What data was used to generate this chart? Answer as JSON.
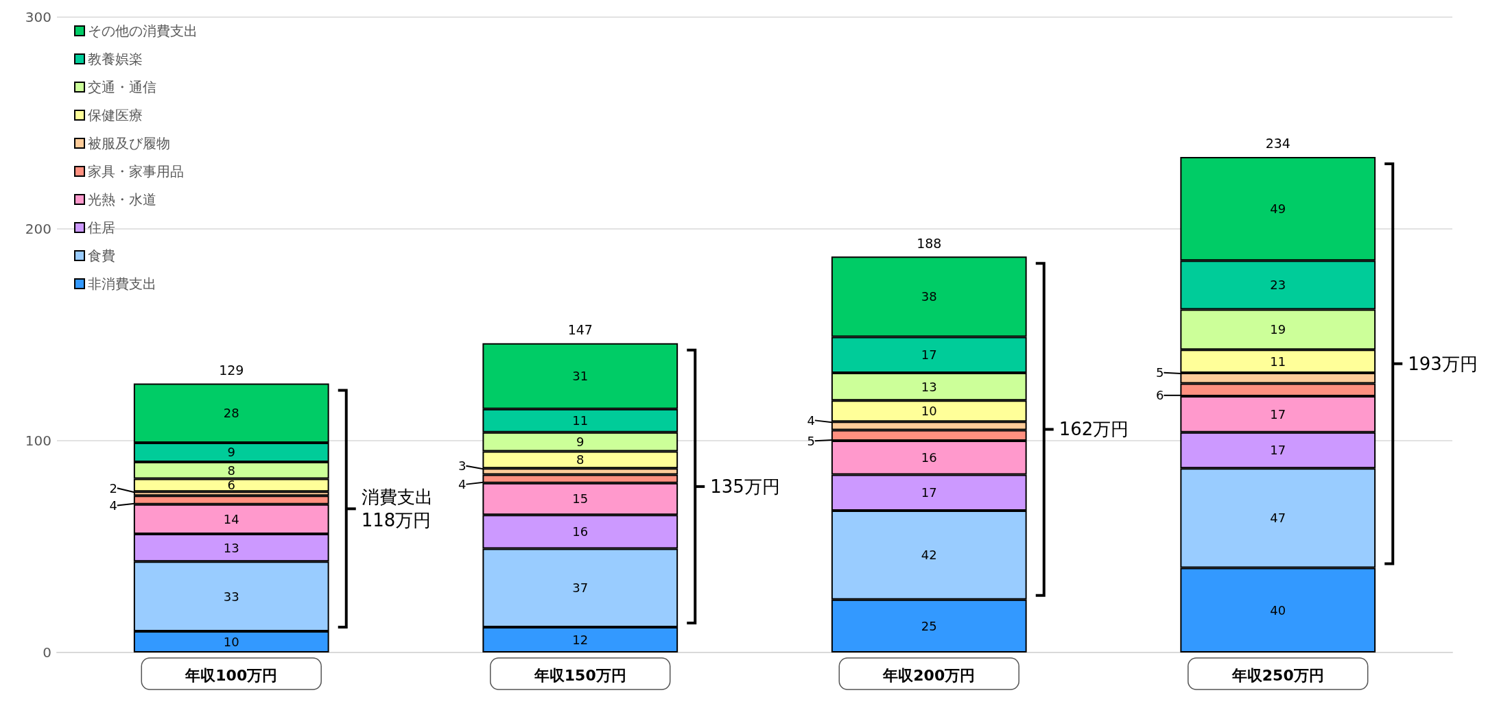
{
  "chart_data": {
    "type": "bar",
    "stacked": true,
    "categories": [
      "年収100万円",
      "年収150万円",
      "年収200万円",
      "年収250万円"
    ],
    "series": [
      {
        "name": "非消費支出",
        "color": "#3399ff",
        "values": [
          10,
          12,
          25,
          40
        ]
      },
      {
        "name": "食費",
        "color": "#99ccff",
        "values": [
          33,
          37,
          42,
          47
        ]
      },
      {
        "name": "住居",
        "color": "#cc99ff",
        "values": [
          13,
          16,
          17,
          17
        ]
      },
      {
        "name": "光熱・水道",
        "color": "#ff99cc",
        "values": [
          14,
          15,
          16,
          17
        ]
      },
      {
        "name": "家具・家事用品",
        "color": "#ff9080",
        "values": [
          4,
          4,
          5,
          6
        ]
      },
      {
        "name": "被服及び履物",
        "color": "#ffcc99",
        "values": [
          2,
          3,
          4,
          5
        ]
      },
      {
        "name": "保健医療",
        "color": "#ffff99",
        "values": [
          6,
          8,
          10,
          11
        ]
      },
      {
        "name": "交通・通信",
        "color": "#ccff99",
        "values": [
          8,
          9,
          13,
          19
        ]
      },
      {
        "name": "教養娯楽",
        "color": "#00cc99",
        "values": [
          9,
          11,
          17,
          23
        ]
      },
      {
        "name": "その他の消費支出",
        "color": "#00cc66",
        "values": [
          28,
          31,
          38,
          49
        ]
      }
    ],
    "totals": [
      "129",
      "147",
      "188",
      "234"
    ],
    "annotations": [
      "消費支出\n118万円",
      "135万円",
      "162万円",
      "193万円"
    ],
    "ylim": [
      0,
      300
    ],
    "yticks": [
      0,
      100,
      200,
      300
    ],
    "grid": "y",
    "legend": "top left",
    "data_labels": true
  }
}
